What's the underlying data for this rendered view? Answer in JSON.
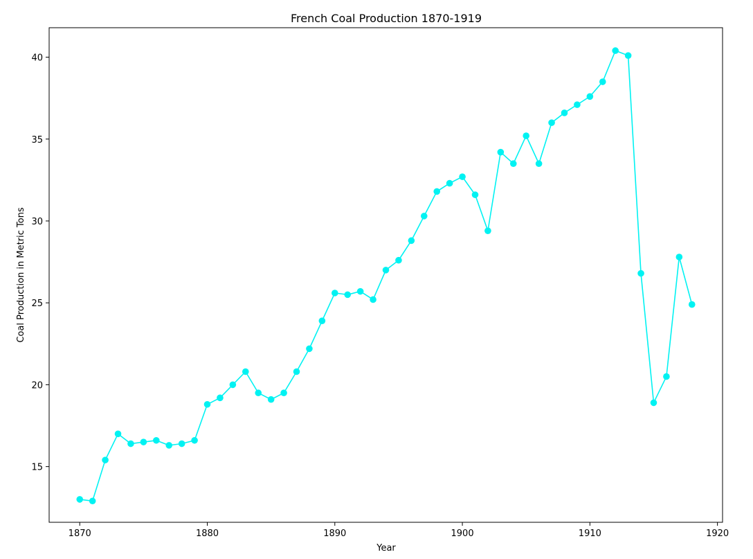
{
  "chart_data": {
    "type": "line",
    "title": "French Coal Production 1870-1919",
    "xlabel": "Year",
    "ylabel": "Coal Production in Metric Tons",
    "xlim": [
      1867.6,
      1920.4
    ],
    "ylim": [
      11.6,
      41.8
    ],
    "xticks": [
      1870,
      1880,
      1890,
      1900,
      1910,
      1920
    ],
    "yticks": [
      15,
      20,
      25,
      30,
      35,
      40
    ],
    "grid": false,
    "color": "#00f2f2",
    "series": [
      {
        "x": [
          1870,
          1871,
          1872,
          1873,
          1874,
          1875,
          1876,
          1877,
          1878,
          1879,
          1880,
          1881,
          1882,
          1883,
          1884,
          1885,
          1886,
          1887,
          1888,
          1889,
          1890,
          1891,
          1892,
          1893,
          1894,
          1895,
          1896,
          1897,
          1898,
          1899,
          1900,
          1901,
          1902,
          1903,
          1904,
          1905,
          1906,
          1907,
          1908,
          1909,
          1910,
          1911,
          1912,
          1913,
          1914,
          1915,
          1916,
          1917,
          1918
        ],
        "values": [
          13.0,
          12.9,
          15.4,
          17.0,
          16.4,
          16.5,
          16.6,
          16.3,
          16.4,
          16.6,
          18.8,
          19.2,
          20.0,
          20.8,
          19.5,
          19.1,
          19.5,
          20.8,
          22.2,
          23.9,
          25.6,
          25.5,
          25.7,
          25.2,
          27.0,
          27.6,
          28.8,
          30.3,
          31.8,
          32.3,
          32.7,
          31.6,
          29.4,
          34.2,
          33.5,
          35.2,
          33.5,
          36.0,
          36.6,
          37.1,
          37.6,
          38.5,
          40.4,
          40.1,
          26.8,
          18.9,
          20.5,
          27.8,
          24.9
        ]
      }
    ]
  }
}
